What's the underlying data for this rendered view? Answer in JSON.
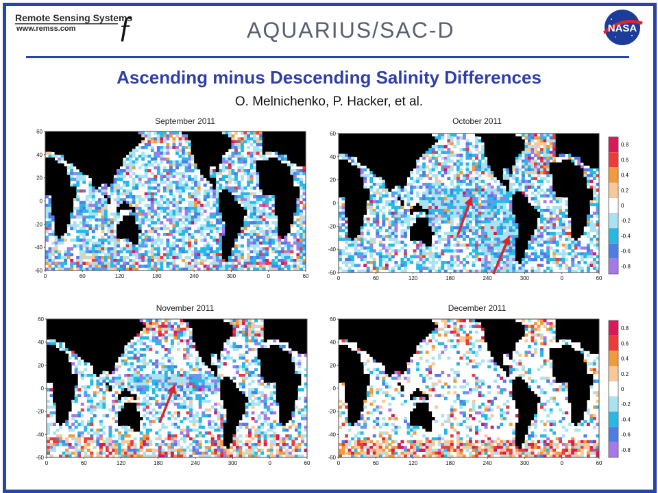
{
  "header": {
    "org_name": "Remote Sensing Systems",
    "org_url": "www.remss.com",
    "mission_logo": "AQUARIUS/SAC-D",
    "agency_logo": "NASA"
  },
  "title": "Ascending minus Descending Salinity  Differences",
  "authors": "O. Melnichenko, P.  Hacker, et al.",
  "colors": {
    "frame": "#2446a8",
    "title": "#2e3fa9",
    "arrow": "#d9262b",
    "land": "#000000"
  },
  "chart_data": [
    {
      "type": "heatmap",
      "title": "September 2011",
      "xlabel": "",
      "ylabel": "",
      "x_ticks": [
        "0",
        "60",
        "120",
        "180",
        "240",
        "300",
        "0",
        "60"
      ],
      "y_ticks": [
        "60",
        "40",
        "20",
        "0",
        "-20",
        "-40",
        "-60"
      ],
      "xlim": [
        0,
        420
      ],
      "ylim": [
        -60,
        60
      ],
      "pattern": "predominantly negative (-0.2 to -0.8) across tropical and southern oceans; scattered positive near high latitudes"
    },
    {
      "type": "heatmap",
      "title": "October 2011",
      "xlabel": "",
      "ylabel": "",
      "x_ticks": [
        "0",
        "60",
        "120",
        "180",
        "240",
        "300",
        "0",
        "60"
      ],
      "y_ticks": [
        "60",
        "40",
        "20",
        "0",
        "-20",
        "-40",
        "-60"
      ],
      "xlim": [
        0,
        420
      ],
      "ylim": [
        -60,
        60
      ],
      "pattern": "strong negative band along equatorial Pacific and eastern South Pacific; positive patch in North Atlantic",
      "annotations": [
        "arrow toward equatorial Pacific",
        "arrow toward southeast Pacific"
      ]
    },
    {
      "type": "heatmap",
      "title": "November 2011",
      "xlabel": "",
      "ylabel": "",
      "x_ticks": [
        "0",
        "60",
        "120",
        "180",
        "240",
        "300",
        "0",
        "60"
      ],
      "y_ticks": [
        "60",
        "40",
        "20",
        "0",
        "-20",
        "-40",
        "-60"
      ],
      "xlim": [
        0,
        420
      ],
      "ylim": [
        -60,
        60
      ],
      "pattern": "negative band across equatorial Pacific; mixed positive near southern high latitudes",
      "annotations": [
        "arrow toward western equatorial Pacific"
      ]
    },
    {
      "type": "heatmap",
      "title": "December 2011",
      "xlabel": "",
      "ylabel": "",
      "x_ticks": [
        "0",
        "60",
        "120",
        "180",
        "240",
        "300",
        "0",
        "60"
      ],
      "y_ticks": [
        "60",
        "40",
        "20",
        "0",
        "-20",
        "-40",
        "-60"
      ],
      "xlim": [
        0,
        420
      ],
      "ylim": [
        -60,
        60
      ],
      "pattern": "mostly near zero; positive values along southern ocean band and some coastal areas"
    }
  ],
  "colorbar": {
    "ticks": [
      "0.8",
      "0.6",
      "0.4",
      "0.2",
      "0",
      "-0.2",
      "-0.4",
      "-0.6",
      "-0.8"
    ],
    "colors": [
      "#d9195a",
      "#ef3a3a",
      "#f39a3a",
      "#f9c89a",
      "#ffffff",
      "#a9e3f2",
      "#27b9e6",
      "#4f7de6",
      "#a778e8"
    ]
  }
}
